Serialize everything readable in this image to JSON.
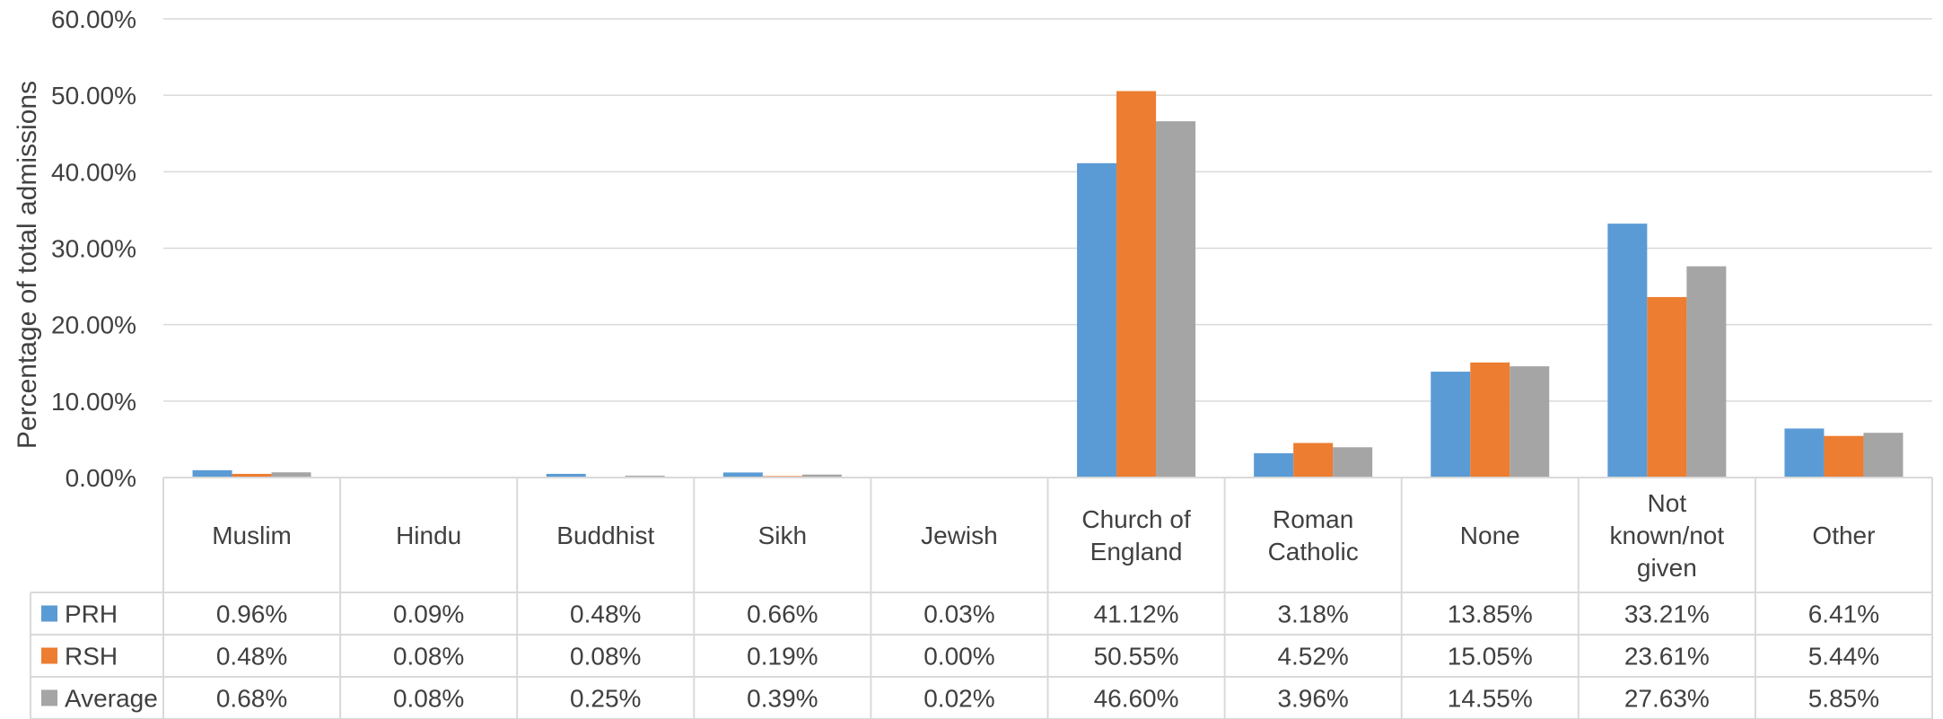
{
  "chart_data": {
    "type": "bar",
    "ylabel": "Percentage of total admissions",
    "ylim": [
      0,
      60
    ],
    "yticks": [
      "0.00%",
      "10.00%",
      "20.00%",
      "30.00%",
      "40.00%",
      "50.00%",
      "60.00%"
    ],
    "ytick_values": [
      0,
      10,
      20,
      30,
      40,
      50,
      60
    ],
    "grid": true,
    "legend": "data-table",
    "categories": [
      [
        "Muslim"
      ],
      [
        "Hindu"
      ],
      [
        "Buddhist"
      ],
      [
        "Sikh"
      ],
      [
        "Jewish"
      ],
      [
        "Church of",
        "England"
      ],
      [
        "Roman",
        "Catholic"
      ],
      [
        "None"
      ],
      [
        "Not",
        "known/not",
        "given"
      ],
      [
        "Other"
      ]
    ],
    "series": [
      {
        "name": "PRH",
        "color": "#5B9BD5",
        "values": [
          0.96,
          0.09,
          0.48,
          0.66,
          0.03,
          41.12,
          3.18,
          13.85,
          33.21,
          6.41
        ],
        "labels": [
          "0.96%",
          "0.09%",
          "0.48%",
          "0.66%",
          "0.03%",
          "41.12%",
          "3.18%",
          "13.85%",
          "33.21%",
          "6.41%"
        ]
      },
      {
        "name": "RSH",
        "color": "#ED7D31",
        "values": [
          0.48,
          0.08,
          0.08,
          0.19,
          0.0,
          50.55,
          4.52,
          15.05,
          23.61,
          5.44
        ],
        "labels": [
          "0.48%",
          "0.08%",
          "0.08%",
          "0.19%",
          "0.00%",
          "50.55%",
          "4.52%",
          "15.05%",
          "23.61%",
          "5.44%"
        ]
      },
      {
        "name": "Average",
        "color": "#A5A5A5",
        "values": [
          0.68,
          0.08,
          0.25,
          0.39,
          0.02,
          46.6,
          3.96,
          14.55,
          27.63,
          5.85
        ],
        "labels": [
          "0.68%",
          "0.08%",
          "0.25%",
          "0.39%",
          "0.02%",
          "46.60%",
          "3.96%",
          "14.55%",
          "27.63%",
          "5.85%"
        ]
      }
    ]
  }
}
